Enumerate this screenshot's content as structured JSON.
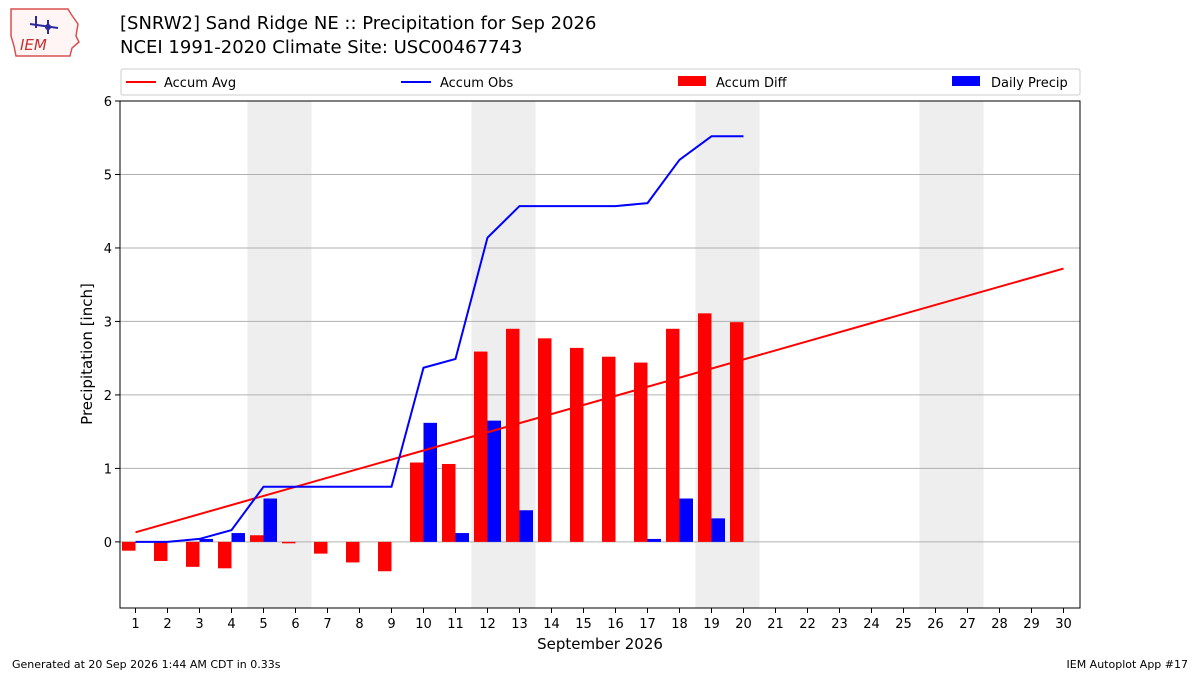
{
  "header": {
    "logo_text": "IEM",
    "title_line1": "[SNRW2] Sand Ridge NE :: Precipitation for Sep 2026",
    "title_line2": "NCEI 1991-2020 Climate Site: USC00467743"
  },
  "footer": {
    "left": "Generated at 20 Sep 2026 1:44 AM CDT in 0.33s",
    "right": "IEM Autoplot App #17"
  },
  "chart_data": {
    "type": "bar",
    "xlabel": "September 2026",
    "ylabel": "Precipitation [inch]",
    "ylim": [
      -0.9,
      6.0
    ],
    "yticks": [
      0,
      1,
      2,
      3,
      4,
      5,
      6
    ],
    "x": [
      1,
      2,
      3,
      4,
      5,
      6,
      7,
      8,
      9,
      10,
      11,
      12,
      13,
      14,
      15,
      16,
      17,
      18,
      19,
      20,
      21,
      22,
      23,
      24,
      25,
      26,
      27,
      28,
      29,
      30
    ],
    "weekend_days": [
      5,
      6,
      12,
      13,
      19,
      20,
      26,
      27
    ],
    "grid": "horizontal",
    "legend_position": "top",
    "legend": [
      "Accum Avg",
      "Accum Obs",
      "Accum Diff",
      "Daily Precip"
    ],
    "series": [
      {
        "name": "Accum Avg",
        "kind": "line",
        "color": "#ff0000",
        "x": [
          1,
          30
        ],
        "values": [
          0.13,
          3.72
        ]
      },
      {
        "name": "Accum Obs",
        "kind": "line",
        "color": "#0000ff",
        "x": [
          1,
          2,
          3,
          4,
          5,
          6,
          7,
          8,
          9,
          10,
          11,
          12,
          13,
          14,
          15,
          16,
          17,
          18,
          19,
          20
        ],
        "values": [
          0.0,
          0.0,
          0.04,
          0.16,
          0.75,
          0.75,
          0.75,
          0.75,
          0.75,
          2.37,
          2.49,
          4.14,
          4.57,
          4.57,
          4.57,
          4.57,
          4.61,
          5.2,
          5.52,
          5.52
        ]
      },
      {
        "name": "Accum Diff",
        "kind": "bar",
        "color": "#ff0000",
        "x": [
          1,
          2,
          3,
          4,
          5,
          6,
          7,
          8,
          9,
          10,
          11,
          12,
          13,
          14,
          15,
          16,
          17,
          18,
          19,
          20
        ],
        "values": [
          -0.12,
          -0.26,
          -0.34,
          -0.36,
          0.09,
          -0.02,
          -0.16,
          -0.28,
          -0.4,
          1.08,
          1.06,
          2.59,
          2.9,
          2.77,
          2.64,
          2.52,
          2.44,
          2.9,
          3.11,
          2.99
        ]
      },
      {
        "name": "Daily Precip",
        "kind": "bar",
        "color": "#0000ff",
        "x": [
          1,
          2,
          3,
          4,
          5,
          6,
          7,
          8,
          9,
          10,
          11,
          12,
          13,
          14,
          15,
          16,
          17,
          18,
          19,
          20
        ],
        "values": [
          0.0,
          0.0,
          0.04,
          0.12,
          0.59,
          0.0,
          0.0,
          0.0,
          0.0,
          1.62,
          0.12,
          1.65,
          0.43,
          0.0,
          0.0,
          0.0,
          0.04,
          0.59,
          0.32,
          0.0
        ]
      }
    ]
  }
}
